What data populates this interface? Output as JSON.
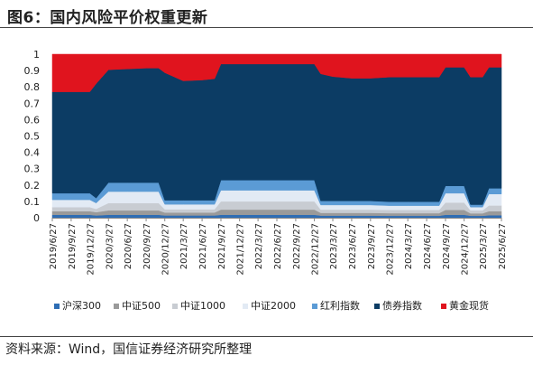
{
  "header": {
    "title": "图6：国内风险平价权重更新"
  },
  "footer": {
    "source": "资料来源：Wind，国信证券经济研究所整理"
  },
  "chart_data": {
    "type": "area",
    "stacked": true,
    "title": "图6：国内风险平价权重更新",
    "xlabel": "",
    "ylabel": "",
    "ylim": [
      0,
      1
    ],
    "yticks": [
      "0",
      "0.1",
      "0.2",
      "0.3",
      "0.4",
      "0.5",
      "0.6",
      "0.7",
      "0.8",
      "0.9",
      "1"
    ],
    "x_tick_labels": [
      "2019/6/27",
      "2019/9/27",
      "2019/12/27",
      "2020/3/27",
      "2020/6/27",
      "2020/9/27",
      "2020/12/27",
      "2021/3/27",
      "2021/6/27",
      "2021/9/27",
      "2021/12/27",
      "2022/3/27",
      "2022/6/27",
      "2022/9/27",
      "2022/12/27",
      "2023/3/27",
      "2023/6/27",
      "2023/9/27",
      "2023/12/27",
      "2024/3/27",
      "2024/6/27",
      "2024/9/27",
      "2024/12/27",
      "2025/3/27",
      "2025/6/27"
    ],
    "x": [
      "2019/6/27",
      "2019/9/27",
      "2019/12/27",
      "2020/1/27",
      "2020/3/27",
      "2020/6/27",
      "2020/9/27",
      "2020/11/27",
      "2020/12/27",
      "2021/3/27",
      "2021/6/27",
      "2021/8/27",
      "2021/9/27",
      "2021/12/27",
      "2022/3/27",
      "2022/6/27",
      "2022/9/27",
      "2022/12/27",
      "2023/1/27",
      "2023/3/27",
      "2023/6/27",
      "2023/9/27",
      "2023/12/27",
      "2024/3/27",
      "2024/6/27",
      "2024/8/27",
      "2024/9/27",
      "2024/12/27",
      "2025/1/27",
      "2025/3/27",
      "2025/4/27",
      "2025/6/27"
    ],
    "series": [
      {
        "name": "沪深300",
        "color": "#2e6db4",
        "values": [
          0.018,
          0.018,
          0.018,
          0.014,
          0.018,
          0.018,
          0.018,
          0.018,
          0.014,
          0.014,
          0.014,
          0.014,
          0.018,
          0.018,
          0.018,
          0.018,
          0.018,
          0.018,
          0.013,
          0.013,
          0.013,
          0.013,
          0.012,
          0.012,
          0.012,
          0.012,
          0.018,
          0.018,
          0.012,
          0.012,
          0.015,
          0.015
        ]
      },
      {
        "name": "中证500",
        "color": "#9a9a9a",
        "values": [
          0.022,
          0.022,
          0.022,
          0.02,
          0.027,
          0.027,
          0.027,
          0.027,
          0.018,
          0.018,
          0.018,
          0.018,
          0.032,
          0.032,
          0.032,
          0.032,
          0.032,
          0.032,
          0.017,
          0.017,
          0.017,
          0.017,
          0.016,
          0.016,
          0.016,
          0.016,
          0.03,
          0.03,
          0.015,
          0.015,
          0.025,
          0.025
        ]
      },
      {
        "name": "中证1000",
        "color": "#c8ccd2",
        "values": [
          0.025,
          0.025,
          0.025,
          0.02,
          0.045,
          0.045,
          0.045,
          0.045,
          0.02,
          0.02,
          0.02,
          0.02,
          0.05,
          0.05,
          0.05,
          0.05,
          0.05,
          0.05,
          0.02,
          0.02,
          0.02,
          0.02,
          0.02,
          0.02,
          0.02,
          0.02,
          0.045,
          0.045,
          0.018,
          0.018,
          0.035,
          0.035
        ]
      },
      {
        "name": "中证2000",
        "color": "#e2eaf4",
        "values": [
          0.045,
          0.045,
          0.045,
          0.036,
          0.07,
          0.07,
          0.07,
          0.07,
          0.03,
          0.03,
          0.03,
          0.03,
          0.068,
          0.068,
          0.068,
          0.068,
          0.068,
          0.068,
          0.028,
          0.028,
          0.028,
          0.028,
          0.026,
          0.026,
          0.026,
          0.026,
          0.057,
          0.057,
          0.02,
          0.02,
          0.07,
          0.07
        ]
      },
      {
        "name": "红利指数",
        "color": "#5b9bd5",
        "values": [
          0.04,
          0.04,
          0.04,
          0.03,
          0.055,
          0.055,
          0.055,
          0.055,
          0.025,
          0.025,
          0.025,
          0.025,
          0.062,
          0.062,
          0.062,
          0.062,
          0.062,
          0.062,
          0.025,
          0.025,
          0.025,
          0.025,
          0.024,
          0.024,
          0.024,
          0.024,
          0.045,
          0.045,
          0.015,
          0.015,
          0.035,
          0.035
        ]
      },
      {
        "name": "债券指数",
        "color": "#0c3c64",
        "values": [
          0.62,
          0.62,
          0.62,
          0.7,
          0.69,
          0.695,
          0.7,
          0.7,
          0.78,
          0.73,
          0.735,
          0.743,
          0.71,
          0.71,
          0.71,
          0.71,
          0.71,
          0.71,
          0.777,
          0.76,
          0.75,
          0.75,
          0.762,
          0.762,
          0.762,
          0.762,
          0.725,
          0.725,
          0.78,
          0.78,
          0.74,
          0.74
        ]
      },
      {
        "name": "黄金现货",
        "color": "#e0141e",
        "values": [
          0.23,
          0.23,
          0.23,
          0.18,
          0.095,
          0.09,
          0.085,
          0.085,
          0.113,
          0.163,
          0.158,
          0.15,
          0.06,
          0.06,
          0.06,
          0.06,
          0.06,
          0.06,
          0.12,
          0.137,
          0.147,
          0.147,
          0.14,
          0.14,
          0.14,
          0.14,
          0.08,
          0.08,
          0.14,
          0.14,
          0.08,
          0.08
        ]
      }
    ],
    "legend_position": "bottom",
    "grid": false
  }
}
